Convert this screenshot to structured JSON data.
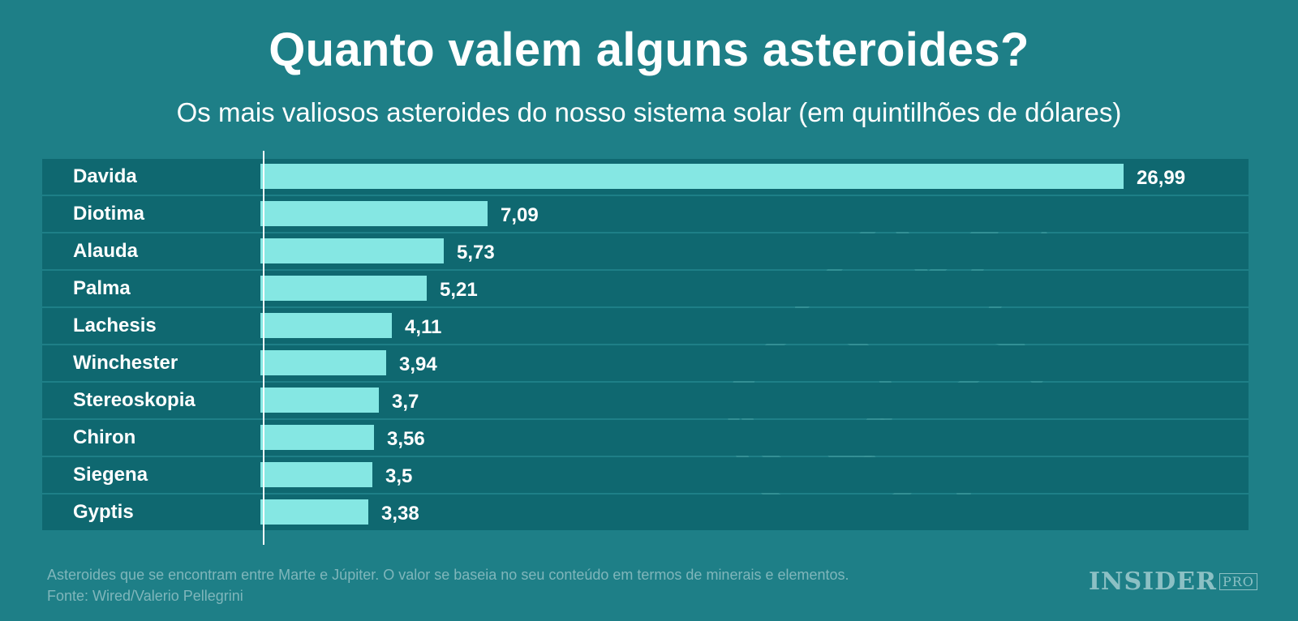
{
  "title": "Quanto valem alguns asteroides?",
  "subtitle": "Os mais valiosos asteroides do nosso sistema solar (em quintilhões de dólares)",
  "footnote": {
    "line1": "Asteroides que se encontram entre Marte e Júpiter. O valor se baseia no seu conteúdo em termos de minerais e elementos.",
    "line2": "Fonte: Wired/Valerio Pellegrini"
  },
  "logo": {
    "text": "INSIDER",
    "sup": "PRO"
  },
  "colors": {
    "background": "#1e7f87",
    "row": "#0f6870",
    "bar": "#85e7e3",
    "text": "#ffffff"
  },
  "chart_data": {
    "type": "bar",
    "orientation": "horizontal",
    "categories": [
      "Davida",
      "Diotima",
      "Alauda",
      "Palma",
      "Lachesis",
      "Winchester",
      "Stereoskopia",
      "Chiron",
      "Siegena",
      "Gyptis"
    ],
    "values": [
      26.99,
      7.09,
      5.73,
      5.21,
      4.11,
      3.94,
      3.7,
      3.56,
      3.5,
      3.38
    ],
    "value_labels": [
      "26,99",
      "7,09",
      "5,73",
      "5,21",
      "4,11",
      "3,94",
      "3,7",
      "3,56",
      "3,5",
      "3,38"
    ],
    "xlim": [
      0,
      26.99
    ],
    "grid": false,
    "legend": "none"
  }
}
